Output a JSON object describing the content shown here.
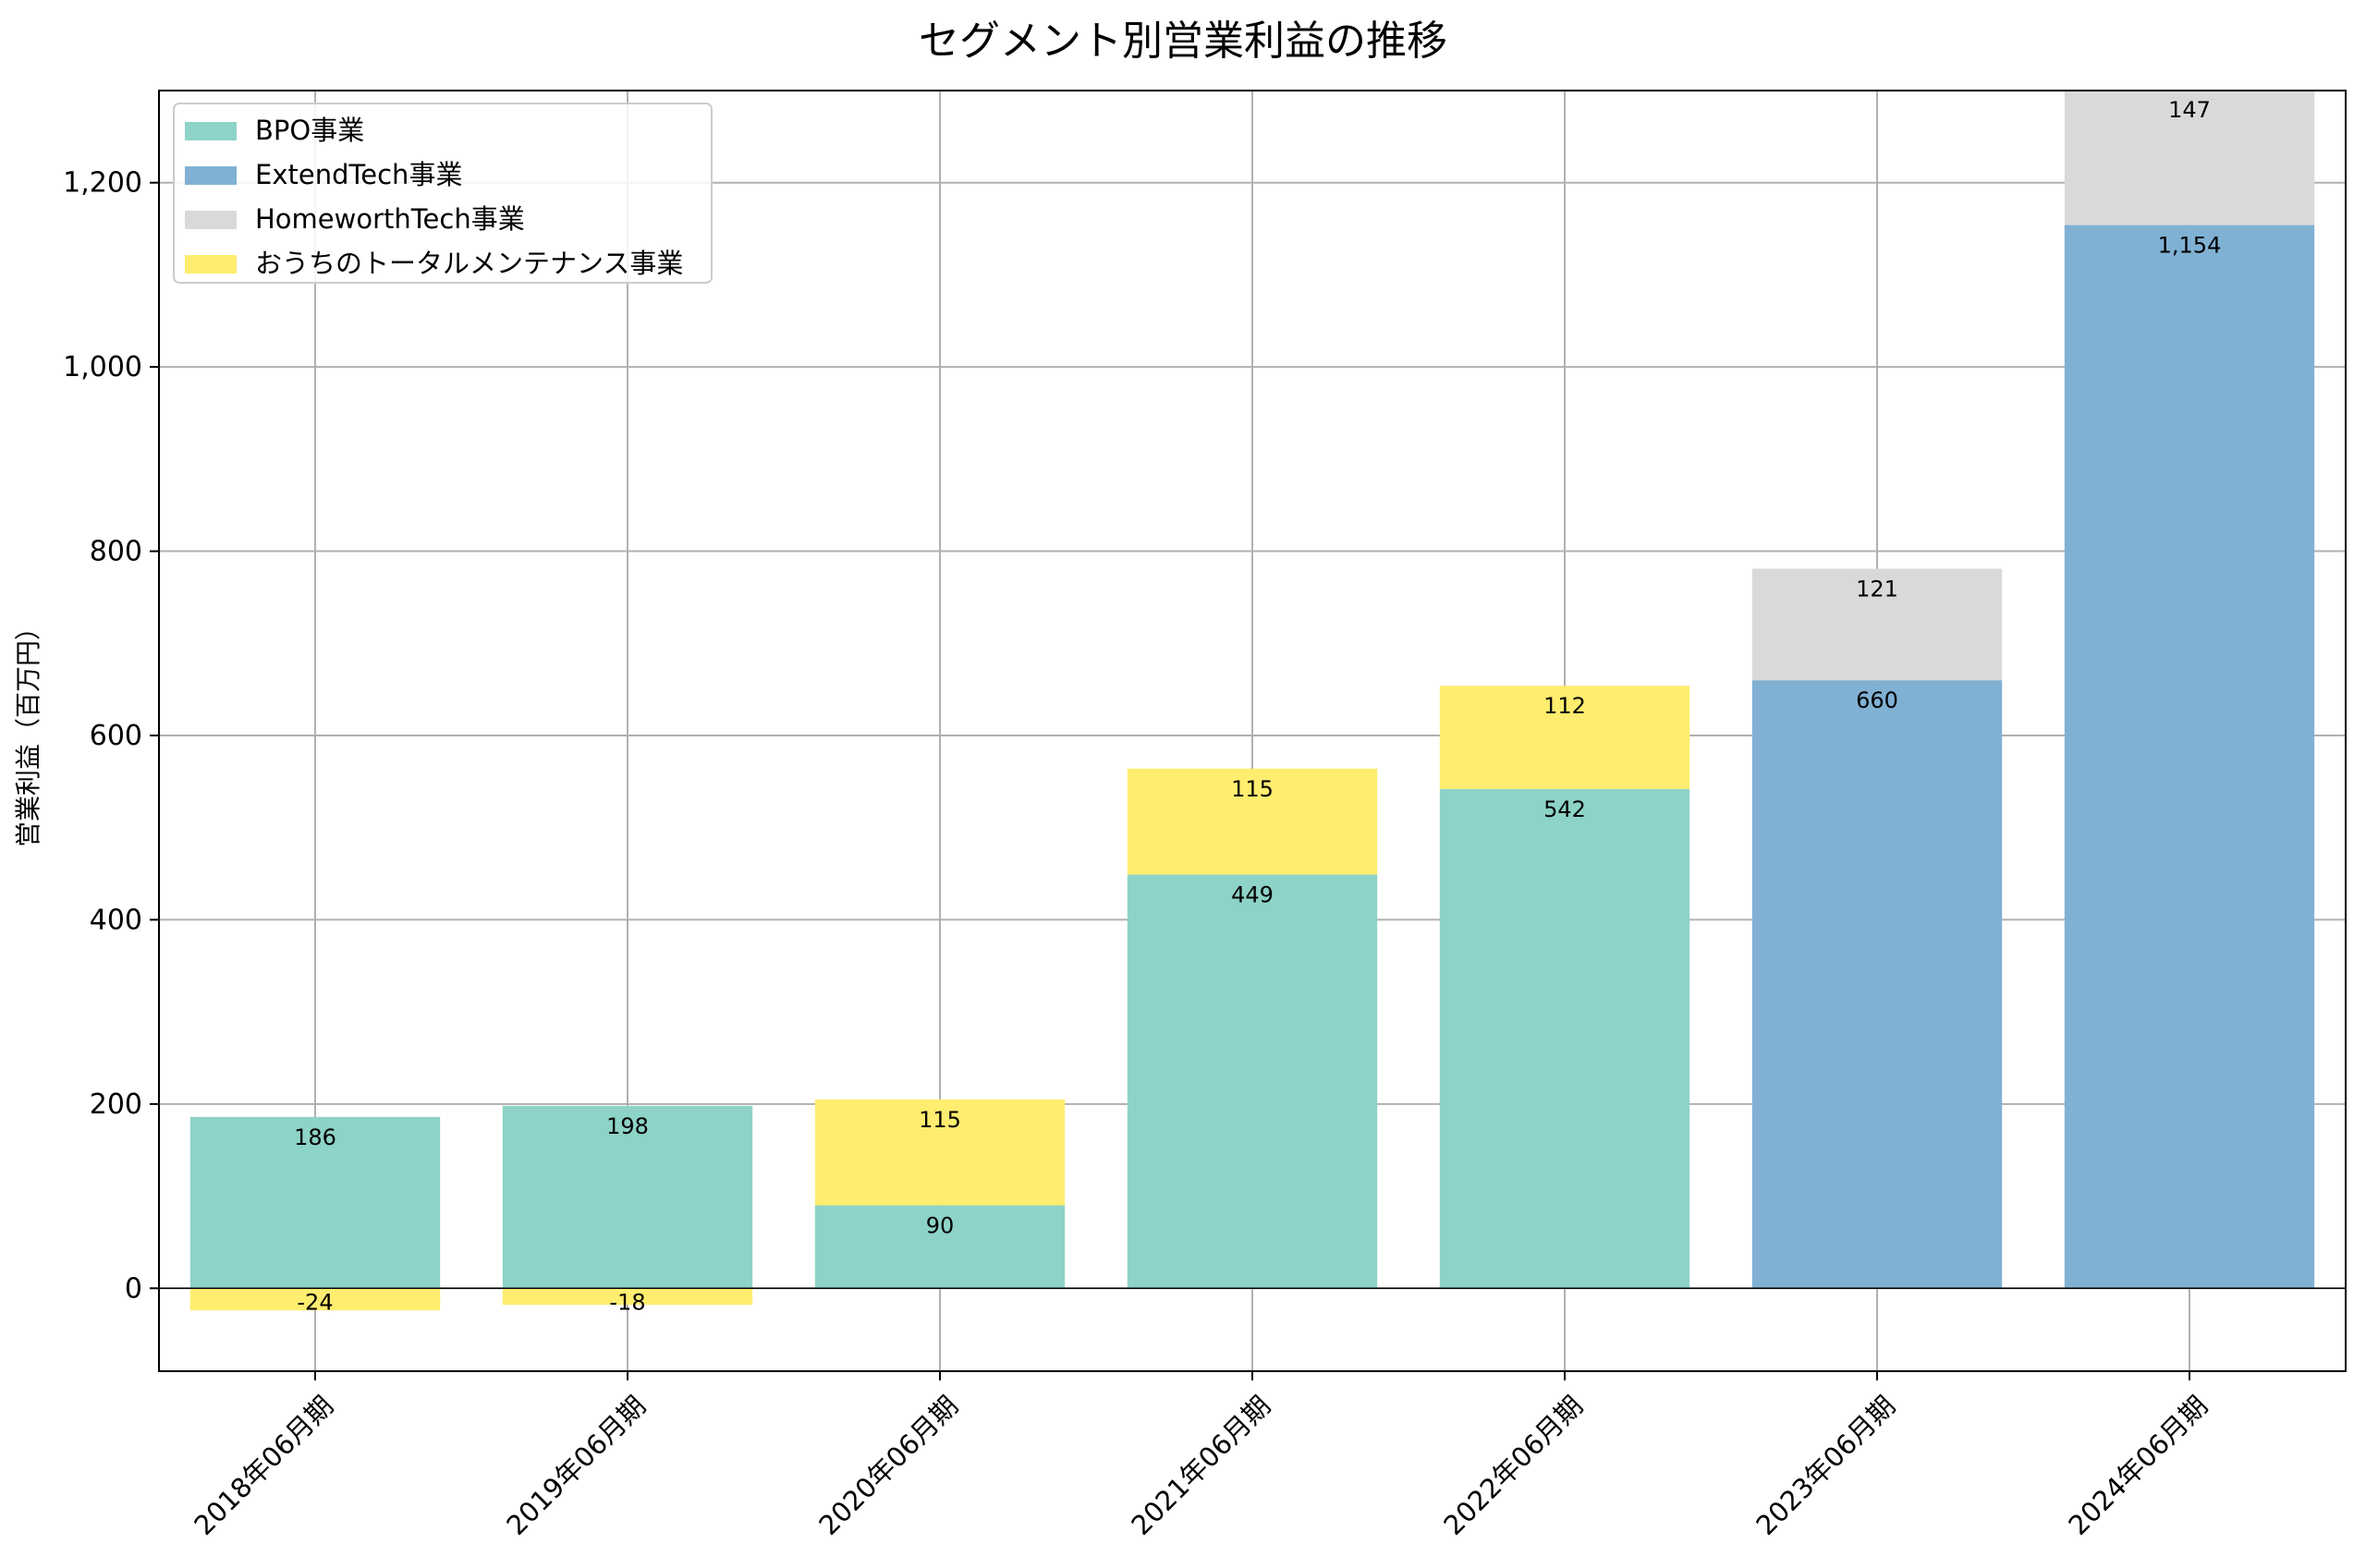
{
  "chart_data": {
    "type": "bar",
    "stacked": true,
    "title": "セグメント別営業利益の推移",
    "xlabel": "",
    "ylabel": "営業利益（百万円）",
    "ylim": [
      -90,
      1300
    ],
    "yticks": [
      0,
      200,
      400,
      600,
      800,
      1000,
      1200
    ],
    "ytick_labels": [
      "0",
      "200",
      "400",
      "600",
      "800",
      "1,000",
      "1,200"
    ],
    "grid": true,
    "legend_position": "top-left",
    "categories": [
      "2018年06月期",
      "2019年06月期",
      "2020年06月期",
      "2021年06月期",
      "2022年06月期",
      "2023年06月期",
      "2024年06月期"
    ],
    "series": [
      {
        "name": "BPO事業",
        "color": "#8dd3c7",
        "values": [
          186,
          198,
          90,
          449,
          542,
          null,
          null
        ],
        "labels": [
          "186",
          "198",
          "90",
          "449",
          "542",
          "",
          ""
        ]
      },
      {
        "name": "ExtendTech事業",
        "color": "#80b1d3",
        "values": [
          null,
          null,
          null,
          null,
          null,
          660,
          1154
        ],
        "labels": [
          "",
          "",
          "",
          "",
          "",
          "660",
          "1,154"
        ]
      },
      {
        "name": "HomeworthTech事業",
        "color": "#d9d9d9",
        "values": [
          null,
          null,
          null,
          null,
          null,
          121,
          147
        ],
        "labels": [
          "",
          "",
          "",
          "",
          "",
          "121",
          "147"
        ]
      },
      {
        "name": "おうちのトータルメンテナンス事業",
        "color": "#ffed6f",
        "values": [
          -24,
          -18,
          115,
          115,
          112,
          null,
          null
        ],
        "labels": [
          "-24",
          "-18",
          "115",
          "115",
          "112",
          "",
          ""
        ]
      }
    ]
  }
}
